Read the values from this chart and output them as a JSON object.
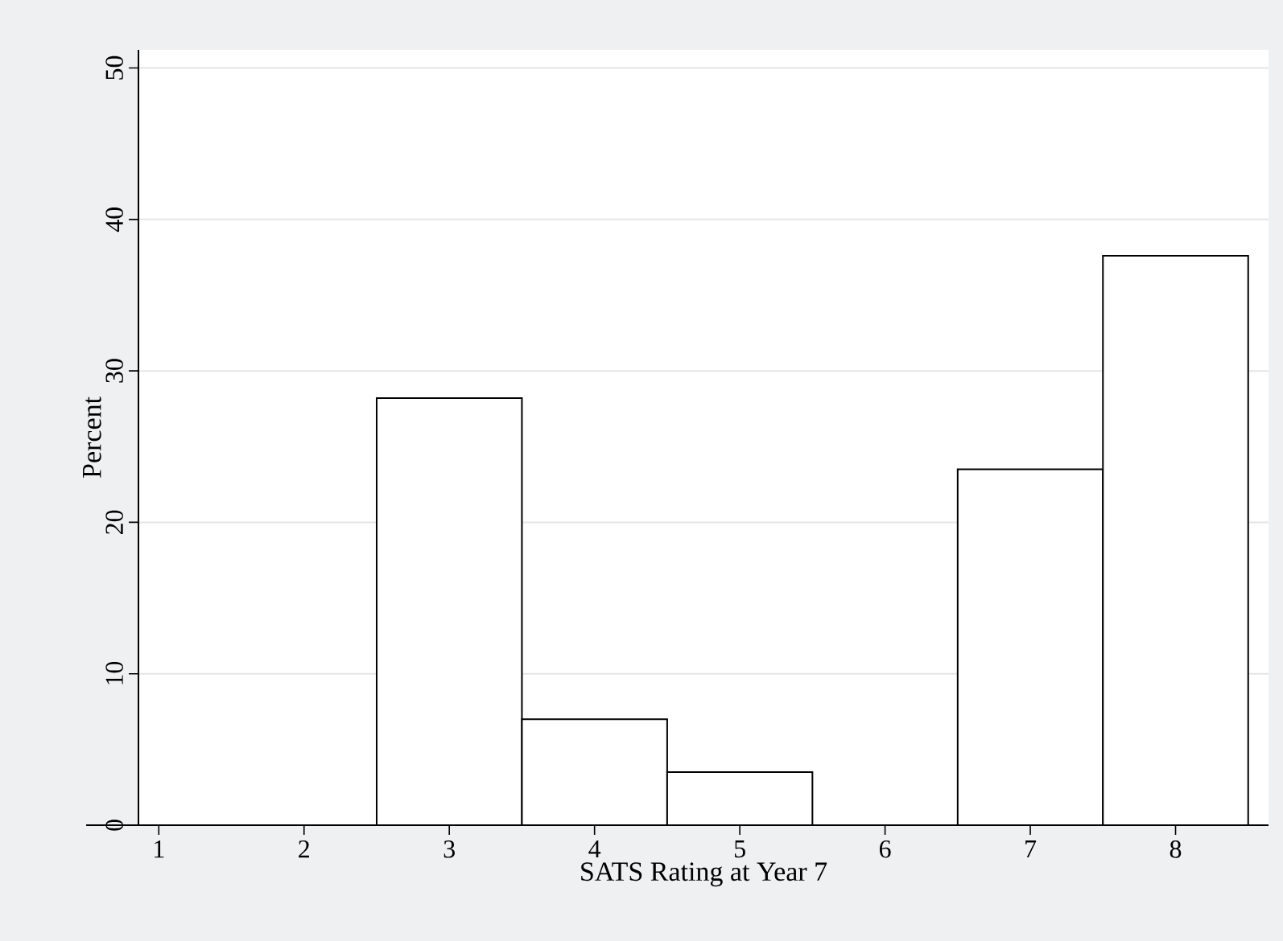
{
  "chart_data": {
    "type": "histogram",
    "xlabel": "SATS Rating at Year 7",
    "ylabel": "Percent",
    "bins": [
      0.5,
      1.5,
      2.5,
      3.5,
      4.5,
      5.5,
      6.5,
      7.5,
      8.5
    ],
    "values": [
      0,
      0,
      28.2,
      7.0,
      3.5,
      0,
      23.5,
      37.6
    ],
    "color": "#ffffff",
    "xlim": [
      0.86,
      8.64
    ],
    "ylim": [
      0,
      51.2
    ],
    "xticks": [
      1,
      2,
      3,
      4,
      5,
      6,
      7,
      8
    ],
    "yticks": [
      0,
      10,
      20,
      30,
      40,
      50
    ],
    "grid": "y"
  }
}
